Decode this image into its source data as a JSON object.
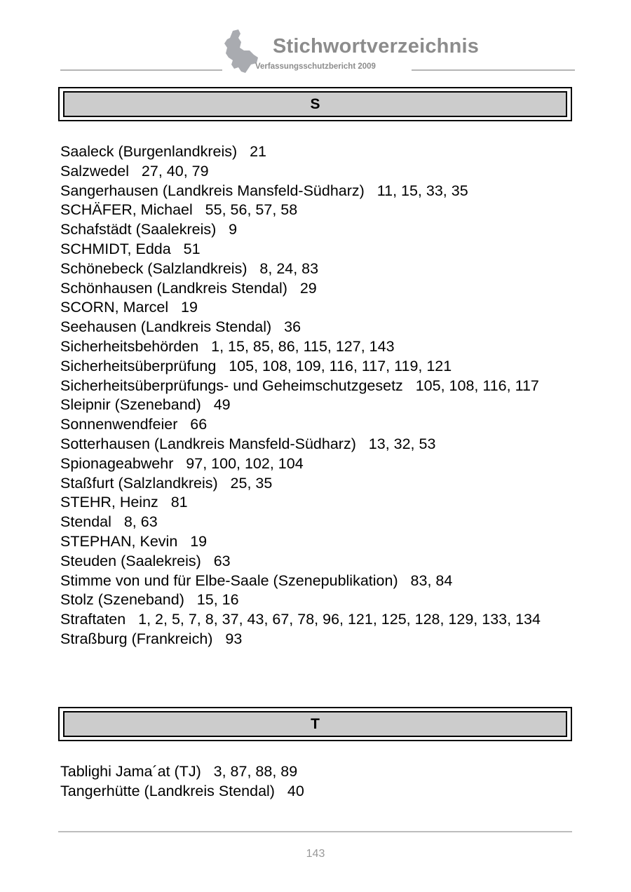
{
  "header": {
    "title": "Stichwortverzeichnis",
    "subtitle": "Verfassungsschutzbericht  2009",
    "logo_icon": "sachsen-anhalt-map-icon"
  },
  "sections": [
    {
      "letter": "S",
      "entries": [
        "Saaleck (Burgenlandkreis)   21",
        "Salzwedel   27, 40, 79",
        "Sangerhausen (Landkreis Mansfeld-Südharz)   11, 15, 33, 35",
        "SCHÄFER, Michael   55, 56, 57, 58",
        "Schafstädt (Saalekreis)   9",
        "SCHMIDT, Edda   51",
        "Schönebeck (Salzlandkreis)   8, 24, 83",
        "Schönhausen (Landkreis Stendal)   29",
        "SCORN, Marcel   19",
        "Seehausen (Landkreis Stendal)   36",
        "Sicherheitsbehörden   1, 15, 85, 86, 115, 127, 143",
        "Sicherheitsüberprüfung   105, 108, 109, 116, 117, 119, 121",
        "Sicherheitsüberprüfungs- und Geheimschutzgesetz   105, 108, 116, 117",
        "Sleipnir (Szeneband)   49",
        "Sonnenwendfeier   66",
        "Sotterhausen (Landkreis Mansfeld-Südharz)   13, 32, 53",
        "Spionageabwehr   97, 100, 102, 104",
        "Staßfurt (Salzlandkreis)   25, 35",
        "STEHR, Heinz   81",
        "Stendal   8, 63",
        "STEPHAN, Kevin   19",
        "Steuden (Saalekreis)   63",
        "Stimme von und für Elbe-Saale (Szenepublikation)   83, 84",
        "Stolz (Szeneband)   15, 16",
        "Straftaten   1, 2, 5, 7, 8, 37, 43, 67, 78, 96, 121, 125, 128, 129, 133, 134",
        "Straßburg (Frankreich)   93"
      ]
    },
    {
      "letter": "T",
      "entries": [
        "Tablighi Jama´at (TJ)   3, 87, 88, 89",
        "Tangerhütte (Landkreis Stendal)   40"
      ]
    }
  ],
  "footer": {
    "page_number": "143"
  }
}
